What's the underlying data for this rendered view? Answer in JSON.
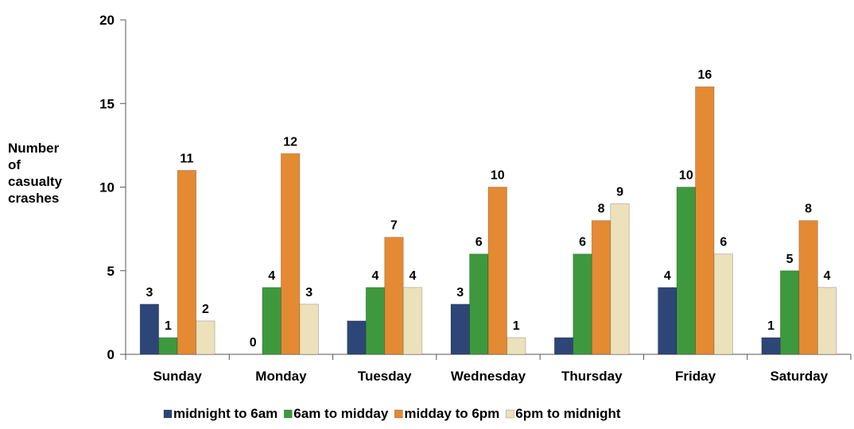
{
  "chart_data": {
    "type": "bar",
    "ylabel": "Number of casualty crashes",
    "categories": [
      "Sunday",
      "Monday",
      "Tuesday",
      "Wednesday",
      "Thursday",
      "Friday",
      "Saturday"
    ],
    "series": [
      {
        "name": "midnight to 6am",
        "color": "#2d4677",
        "values": [
          3,
          0,
          2,
          3,
          1,
          4,
          1
        ],
        "value_labels": [
          "3",
          "0",
          null,
          "3",
          null,
          "4",
          "1"
        ]
      },
      {
        "name": "6am to midday",
        "color": "#3e993e",
        "values": [
          1,
          4,
          4,
          6,
          6,
          10,
          5
        ]
      },
      {
        "name": "midday to 6pm",
        "color": "#e48a33",
        "values": [
          11,
          12,
          7,
          10,
          8,
          16,
          8
        ]
      },
      {
        "name": "6pm to midnight",
        "color": "#ebe1bb",
        "values": [
          2,
          3,
          4,
          1,
          9,
          6,
          4
        ]
      }
    ],
    "ylim": [
      0,
      20
    ],
    "yticks": [
      0,
      5,
      10,
      15,
      20
    ]
  }
}
